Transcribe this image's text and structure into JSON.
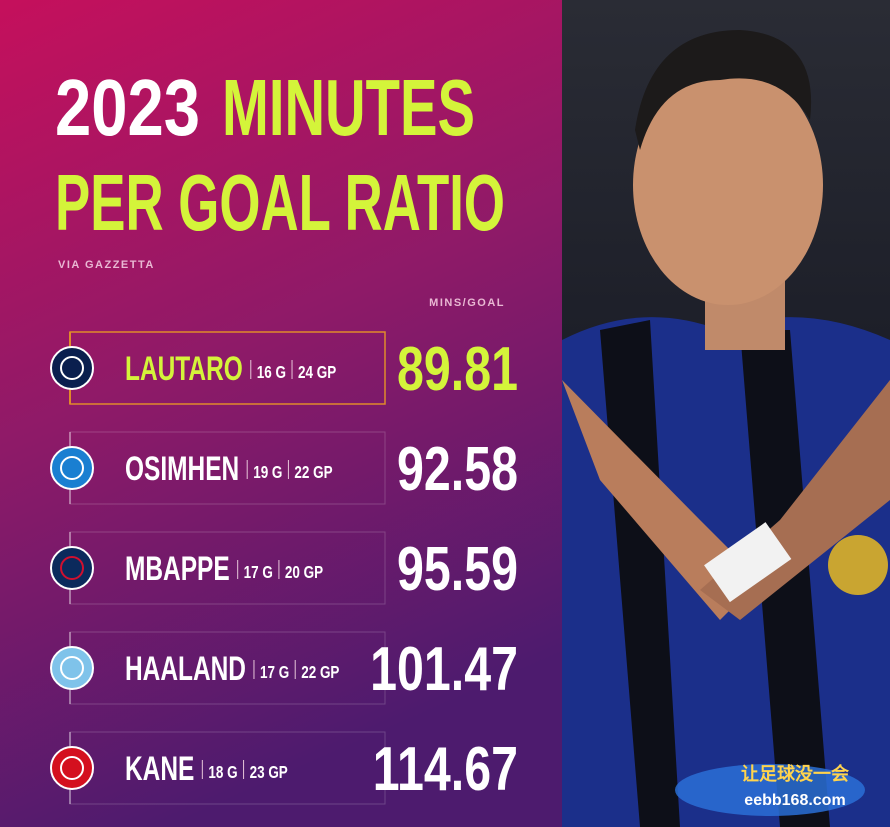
{
  "header": {
    "year": "2023",
    "title_line1": "MINUTES",
    "title_line2": "PER GOAL RATIO",
    "source": "VIA GAZZETTA"
  },
  "table": {
    "column_header": "MINS/GOAL",
    "rows": [
      {
        "name": "LAUTARO",
        "goals": "16 G",
        "games": "24 GP",
        "mins_per_goal": 89.81
      },
      {
        "name": "OSIMHEN",
        "goals": "19 G",
        "games": "22 GP",
        "mins_per_goal": 92.58
      },
      {
        "name": "MBAPPE",
        "goals": "17 G",
        "games": "20 GP",
        "mins_per_goal": 95.59
      },
      {
        "name": "HAALAND",
        "goals": "17 G",
        "games": "22 GP",
        "mins_per_goal": 101.47
      },
      {
        "name": "KANE",
        "goals": "18 G",
        "games": "23 GP",
        "mins_per_goal": 114.67
      }
    ]
  },
  "watermark": {
    "text": "让足球没一会",
    "url": "eebb168.com"
  }
}
